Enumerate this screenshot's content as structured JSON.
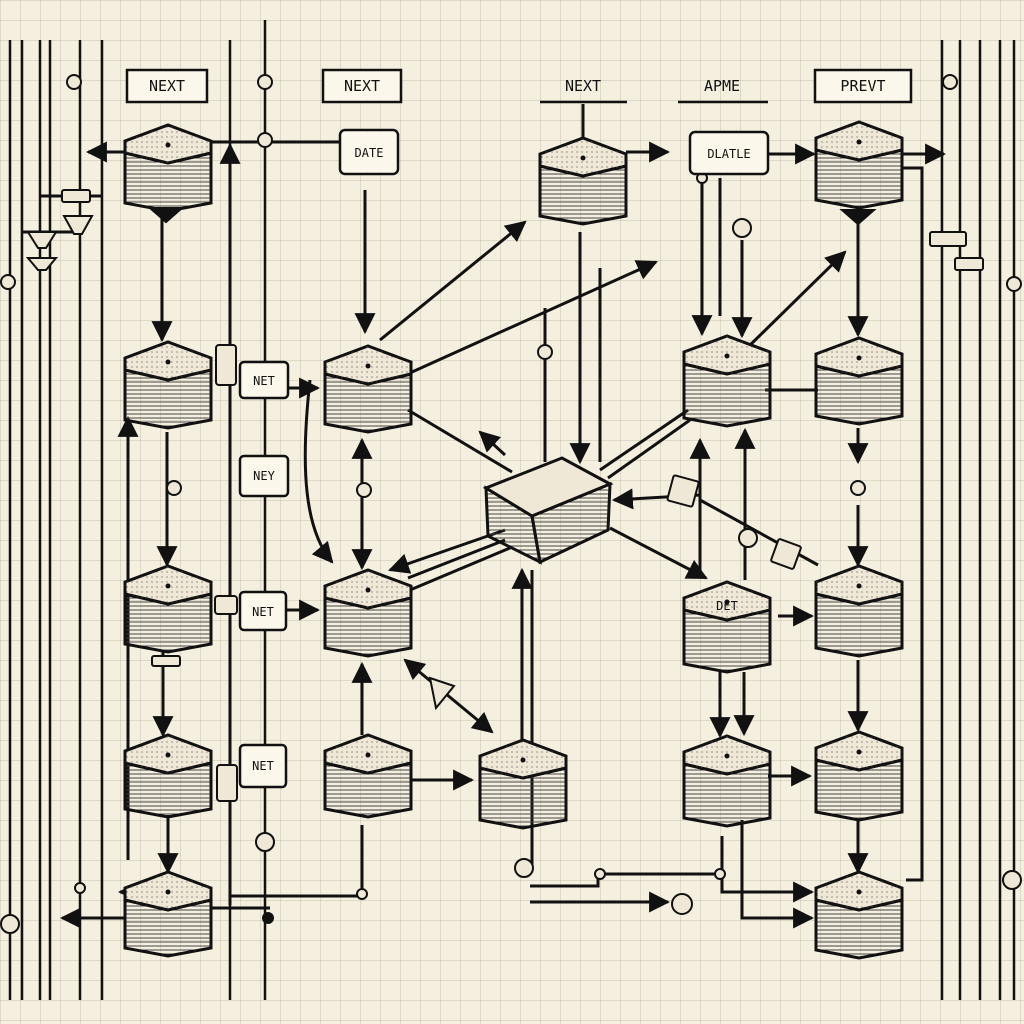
{
  "colors": {
    "paper": "#f4efdf",
    "ink": "#111111",
    "block_top": "#efe8d6",
    "block_side": "#ddd4be",
    "label_fill": "#fbf7ea"
  },
  "header_labels": {
    "col1": "NEXT",
    "col2": "NEXT",
    "col3": "NEXT",
    "col4": "APME",
    "col5": "PREVT"
  },
  "inline_labels": {
    "date": "DATE",
    "dlatle": "DLATLE",
    "net_a": "NET",
    "ney": "NEY",
    "net_b": "NET",
    "net_c": "NET",
    "det": "DET"
  },
  "icons": {
    "block": "isometric-block-icon",
    "node": "connector-node-icon",
    "arrow": "arrowhead-icon"
  }
}
